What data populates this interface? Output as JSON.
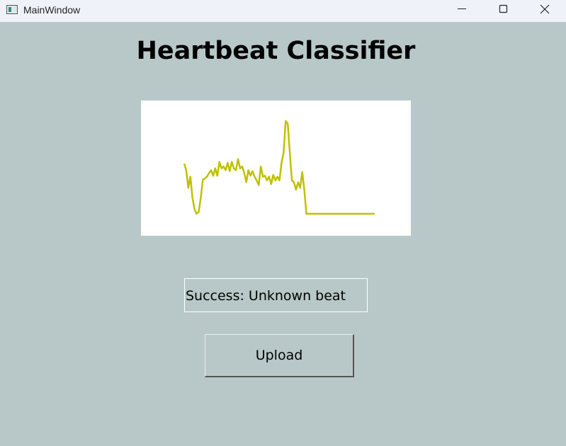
{
  "window": {
    "title": "MainWindow"
  },
  "header": {
    "title": "Heartbeat Classifier"
  },
  "chart_data": {
    "type": "line",
    "color": "#c0c000",
    "ylim": [
      0,
      1
    ],
    "values": [
      0.54,
      0.47,
      0.28,
      0.4,
      0.17,
      0.05,
      0,
      0.02,
      0.17,
      0.37,
      0.38,
      0.4,
      0.44,
      0.47,
      0.41,
      0.49,
      0.41,
      0.56,
      0.49,
      0.51,
      0.47,
      0.55,
      0.46,
      0.56,
      0.49,
      0.47,
      0.59,
      0.49,
      0.51,
      0.44,
      0.34,
      0.47,
      0.41,
      0.46,
      0.4,
      0.36,
      0.31,
      0.51,
      0.4,
      0.41,
      0.36,
      0.4,
      0.32,
      0.42,
      0.36,
      0.4,
      0.36,
      0.55,
      0.66,
      1.0,
      0.97,
      0.66,
      0.36,
      0.34,
      0.26,
      0.34,
      0.28,
      0.45,
      0.26,
      0,
      0,
      0,
      0,
      0,
      0,
      0,
      0,
      0,
      0,
      0,
      0,
      0,
      0,
      0,
      0,
      0,
      0,
      0,
      0,
      0,
      0,
      0,
      0,
      0,
      0,
      0,
      0,
      0,
      0,
      0,
      0,
      0,
      0
    ]
  },
  "status": {
    "text": "Success: Unknown beat"
  },
  "button": {
    "label": "Upload"
  }
}
